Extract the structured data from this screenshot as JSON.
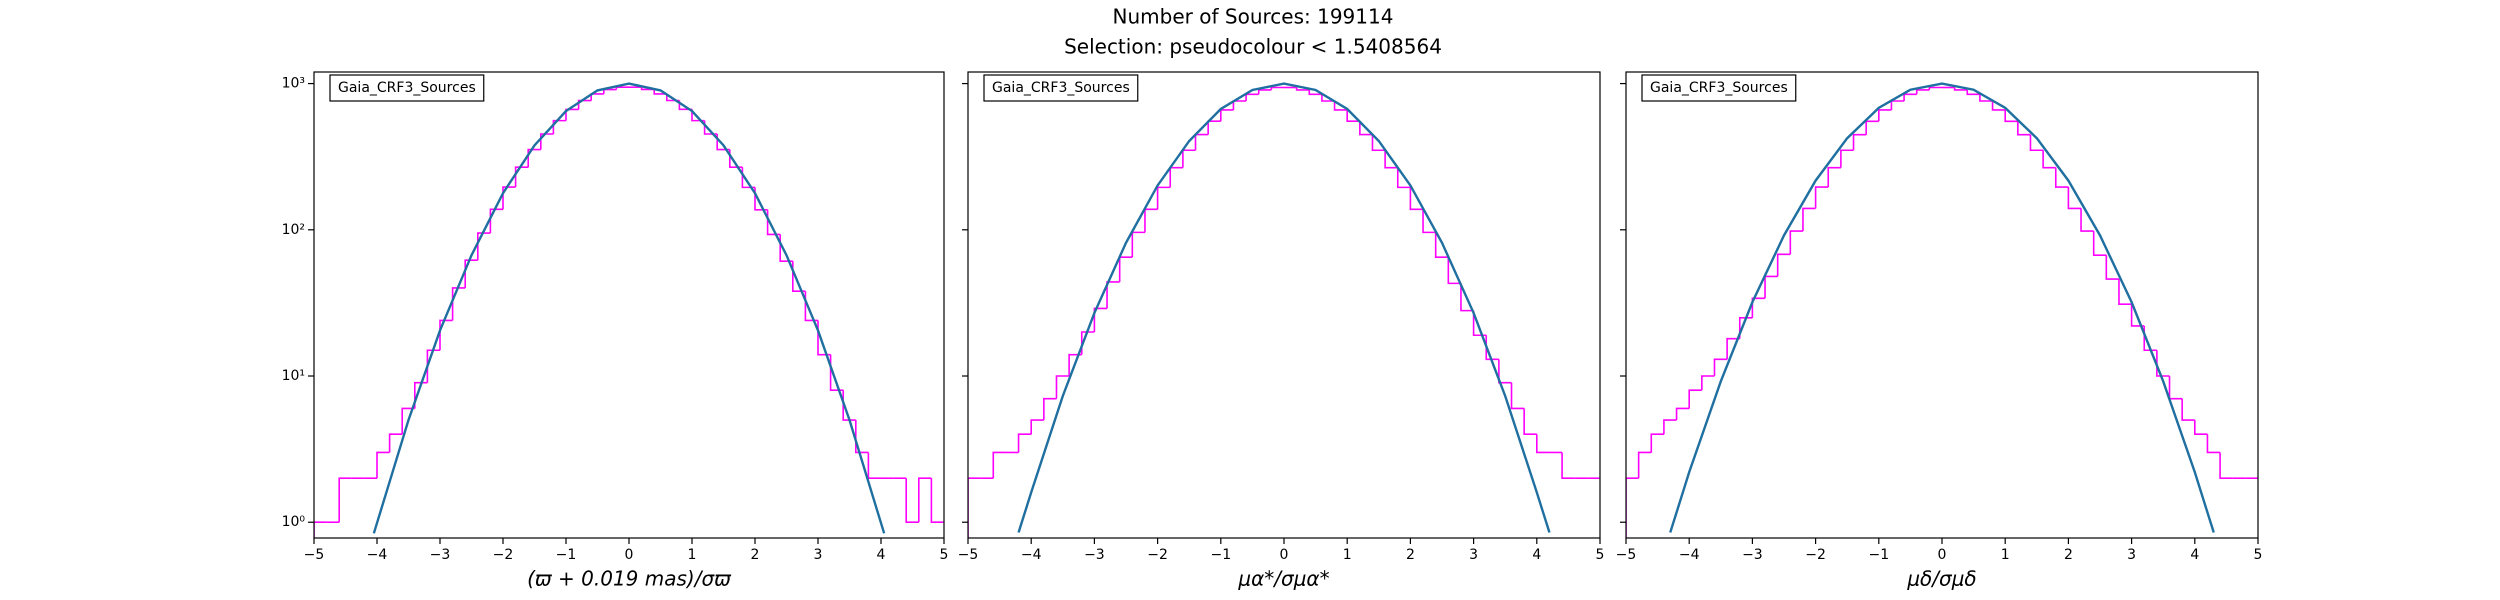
{
  "title": "Number of Sources: 199114",
  "subtitle": "Selection: pseudocolour < 1.5408564",
  "chart_data": [
    {
      "type": "histogram",
      "xlabel": "(ϖ + 0.019 mas)/σϖ",
      "log_y": true,
      "legend": "upper left",
      "xlim": [
        -5,
        5
      ],
      "ylim": [
        0.78,
        1200
      ],
      "xticks": [
        {
          "value": -5,
          "label": "−5"
        },
        {
          "value": -4,
          "label": "−4"
        },
        {
          "value": -3,
          "label": "−3"
        },
        {
          "value": -2,
          "label": "−2"
        },
        {
          "value": -1,
          "label": "−1"
        },
        0,
        1,
        2,
        3,
        4,
        5
      ],
      "yticks": [
        {
          "value": 1,
          "label": "10⁰"
        },
        {
          "value": 10,
          "label": "10¹"
        },
        {
          "value": 100,
          "label": "10²"
        },
        {
          "value": 1000,
          "label": "10³"
        }
      ],
      "bins": [
        -5,
        -4.8,
        -4.6,
        -4.4,
        -4.2,
        -4,
        -3.8,
        -3.6,
        -3.4,
        -3.2,
        -3,
        -2.8,
        -2.6,
        -2.4,
        -2.2,
        -2,
        -1.8,
        -1.6,
        -1.4,
        -1.2,
        -1,
        -0.8,
        -0.6,
        -0.4,
        -0.2,
        0,
        0.2,
        0.4,
        0.6,
        0.8,
        1,
        1.2,
        1.4,
        1.6,
        1.8,
        2,
        2.2,
        2.4,
        2.6,
        2.8,
        3,
        3.2,
        3.4,
        3.6,
        3.8,
        4,
        4.2,
        4.4,
        4.6,
        4.8,
        5
      ],
      "series": [
        {
          "name": "Gaia_CRF3_Sources",
          "color": "#ff00ff",
          "values": [
            1,
            1,
            2,
            2,
            2,
            3,
            4,
            6,
            9,
            15,
            24,
            40,
            62,
            95,
            138,
            196,
            268,
            354,
            452,
            558,
            665,
            765,
            850,
            910,
            945,
            945,
            912,
            850,
            766,
            667,
            558,
            452,
            354,
            268,
            195,
            137,
            93,
            61,
            38,
            24,
            14,
            8,
            5,
            3,
            2,
            2,
            2,
            1,
            2,
            1
          ]
        }
      ],
      "lines": [
        {
          "color": "#1f6fa0",
          "x": [
            -4.05,
            -3.5,
            -3,
            -2.5,
            -2,
            -1.5,
            -1,
            -0.5,
            0,
            0.5,
            1,
            1.5,
            2,
            2.5,
            3,
            3.5,
            4.05
          ],
          "values": [
            0.84,
            5.0,
            20.5,
            67,
            178,
            378,
            649,
            898,
            1000,
            898,
            649,
            378,
            178,
            67,
            20.5,
            5.0,
            0.84
          ]
        }
      ]
    },
    {
      "type": "histogram",
      "xlabel": "μα*/σμα*",
      "log_y": true,
      "legend": "upper left",
      "xlim": [
        -5,
        5
      ],
      "ylim": [
        0.78,
        1200
      ],
      "xticks": [
        {
          "value": -5,
          "label": "−5"
        },
        {
          "value": -4,
          "label": "−4"
        },
        {
          "value": -3,
          "label": "−3"
        },
        {
          "value": -2,
          "label": "−2"
        },
        {
          "value": -1,
          "label": "−1"
        },
        0,
        1,
        2,
        3,
        4,
        5
      ],
      "yticks": [
        1,
        10,
        100,
        1000
      ],
      "bins": [
        -5,
        -4.8,
        -4.6,
        -4.4,
        -4.2,
        -4,
        -3.8,
        -3.6,
        -3.4,
        -3.2,
        -3,
        -2.8,
        -2.6,
        -2.4,
        -2.2,
        -2,
        -1.8,
        -1.6,
        -1.4,
        -1.2,
        -1,
        -0.8,
        -0.6,
        -0.4,
        -0.2,
        0,
        0.2,
        0.4,
        0.6,
        0.8,
        1,
        1.2,
        1.4,
        1.6,
        1.8,
        2,
        2.2,
        2.4,
        2.6,
        2.8,
        3,
        3.2,
        3.4,
        3.6,
        3.8,
        4,
        4.2,
        4.4,
        4.6,
        4.8,
        5
      ],
      "series": [
        {
          "name": "Gaia_CRF3_Sources",
          "color": "#ff00ff",
          "values": [
            2,
            2,
            3,
            3,
            4,
            5,
            7,
            10,
            14,
            20,
            29,
            44,
            65,
            96,
            138,
            195,
            266,
            350,
            448,
            553,
            660,
            760,
            845,
            905,
            940,
            940,
            905,
            845,
            760,
            660,
            553,
            448,
            350,
            266,
            195,
            138,
            96,
            65,
            43,
            28,
            19,
            13,
            9,
            6,
            4,
            3,
            3,
            2,
            2,
            2
          ]
        }
      ],
      "lines": [
        {
          "color": "#1f6fa0",
          "x": [
            -4.2,
            -4,
            -3.5,
            -3,
            -2.5,
            -2,
            -1.5,
            -1,
            -0.5,
            0,
            0.5,
            1,
            1.5,
            2,
            2.5,
            3,
            3.5,
            4,
            4.2
          ],
          "values": [
            0.85,
            1.6,
            7.3,
            27,
            81.5,
            201,
            405,
            670,
            904,
            1000,
            904,
            670,
            405,
            201,
            81.5,
            27,
            7.3,
            1.6,
            0.85
          ]
        }
      ]
    },
    {
      "type": "histogram",
      "xlabel": "μδ/σμδ",
      "log_y": true,
      "legend": "upper left",
      "xlim": [
        -5,
        5
      ],
      "ylim": [
        0.78,
        1200
      ],
      "xticks": [
        {
          "value": -5,
          "label": "−5"
        },
        {
          "value": -4,
          "label": "−4"
        },
        {
          "value": -3,
          "label": "−3"
        },
        {
          "value": -2,
          "label": "−2"
        },
        {
          "value": -1,
          "label": "−1"
        },
        0,
        1,
        2,
        3,
        4,
        5
      ],
      "yticks": [
        1,
        10,
        100,
        1000
      ],
      "bins": [
        -5,
        -4.8,
        -4.6,
        -4.4,
        -4.2,
        -4,
        -3.8,
        -3.6,
        -3.4,
        -3.2,
        -3,
        -2.8,
        -2.6,
        -2.4,
        -2.2,
        -2,
        -1.8,
        -1.6,
        -1.4,
        -1.2,
        -1,
        -0.8,
        -0.6,
        -0.4,
        -0.2,
        0,
        0.2,
        0.4,
        0.6,
        0.8,
        1,
        1.2,
        1.4,
        1.6,
        1.8,
        2,
        2.2,
        2.4,
        2.6,
        2.8,
        3,
        3.2,
        3.4,
        3.6,
        3.8,
        4,
        4.2,
        4.4,
        4.6,
        4.8,
        5
      ],
      "series": [
        {
          "name": "Gaia_CRF3_Sources",
          "color": "#ff00ff",
          "values": [
            2,
            3,
            4,
            5,
            6,
            8,
            10,
            13,
            18,
            25,
            34,
            48,
            68,
            98,
            140,
            196,
            266,
            350,
            447,
            552,
            660,
            760,
            845,
            905,
            940,
            940,
            905,
            845,
            760,
            660,
            552,
            447,
            350,
            266,
            196,
            140,
            98,
            67,
            46,
            31,
            22,
            15,
            10,
            7,
            5,
            4,
            3,
            2,
            2,
            2
          ]
        }
      ],
      "lines": [
        {
          "color": "#1f6fa0",
          "x": [
            -4.3,
            -4,
            -3.5,
            -3,
            -2.5,
            -2,
            -1.5,
            -1,
            -0.5,
            0,
            0.5,
            1,
            1.5,
            2,
            2.5,
            3,
            3.5,
            4,
            4.3
          ],
          "values": [
            0.85,
            2.2,
            9.2,
            32,
            91.6,
            217,
            423,
            682,
            908,
            1000,
            908,
            682,
            423,
            217,
            91.6,
            32,
            9.2,
            2.2,
            0.85
          ]
        }
      ]
    }
  ]
}
